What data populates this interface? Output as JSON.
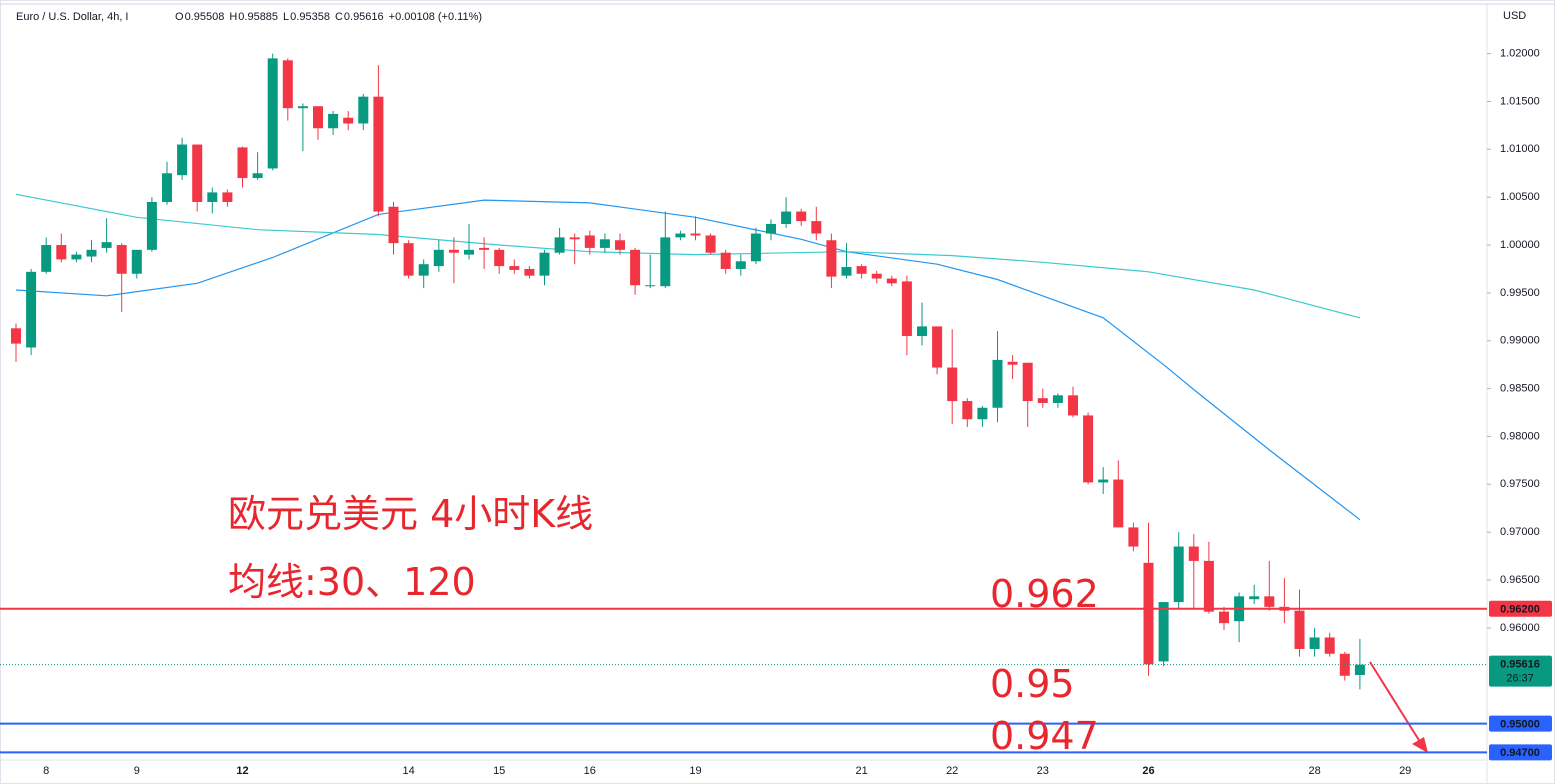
{
  "chart_data": {
    "type": "candlestick",
    "header": {
      "symbol": "Euro / U.S. Dollar, 4h, I",
      "ohlc": [
        {
          "label": "O",
          "value": 0.95508
        },
        {
          "label": "H",
          "value": 0.95885
        },
        {
          "label": "L",
          "value": 0.95358
        },
        {
          "label": "C",
          "value": 0.95616
        }
      ],
      "change": "+0.00108 (+0.11%)"
    },
    "currency": "USD",
    "categories": [
      null,
      null,
      "8",
      null,
      null,
      null,
      null,
      null,
      "9",
      null,
      null,
      null,
      null,
      null,
      null,
      "12",
      null,
      null,
      null,
      null,
      null,
      null,
      null,
      null,
      null,
      null,
      "14",
      null,
      null,
      null,
      null,
      null,
      "15",
      null,
      null,
      null,
      null,
      null,
      "16",
      null,
      null,
      null,
      null,
      null,
      null,
      "19",
      null,
      null,
      null,
      null,
      null,
      null,
      null,
      null,
      null,
      null,
      "21",
      null,
      null,
      null,
      null,
      null,
      "22",
      null,
      null,
      null,
      null,
      null,
      "23",
      null,
      null,
      null,
      null,
      null,
      null,
      "26",
      null,
      null,
      null,
      null,
      null,
      null,
      null,
      null,
      null,
      null,
      "28",
      null,
      null,
      null,
      null,
      null,
      "29"
    ],
    "open": [
      0.9913,
      0.9893,
      0.9972,
      1.0,
      0.9985,
      0.9988,
      0.9997,
      1.0,
      0.997,
      0.9995,
      1.0045,
      1.0073,
      1.0105,
      1.0045,
      1.0055,
      1.0102,
      1.007,
      1.008,
      1.0193,
      1.0143,
      1.0145,
      1.0122,
      1.0133,
      1.0127,
      1.0155,
      1.004,
      1.0002,
      0.9968,
      0.9978,
      0.9995,
      0.999,
      0.9997,
      0.9995,
      0.9978,
      0.9975,
      0.9968,
      0.9992,
      1.0008,
      1.001,
      0.9997,
      1.0005,
      0.9995,
      0.9957,
      0.9957,
      1.0008,
      1.0012,
      1.001,
      0.9992,
      0.9975,
      0.9983,
      1.0012,
      1.0022,
      1.0035,
      1.0025,
      1.0005,
      0.9968,
      0.9978,
      0.997,
      0.9965,
      0.9962,
      0.9905,
      0.9915,
      0.9872,
      0.9837,
      0.9818,
      0.983,
      0.9878,
      0.9877,
      0.984,
      0.9835,
      0.9843,
      0.9822,
      0.9752,
      0.9755,
      0.9705,
      0.9668,
      0.9565,
      0.9627,
      0.9685,
      0.967,
      0.9617,
      0.9607,
      0.963,
      0.9633,
      0.9622,
      0.9618,
      0.9578,
      0.959,
      0.9573,
      0.95508,
      null,
      null,
      null
    ],
    "high": [
      0.9918,
      0.9975,
      1.0008,
      1.0012,
      0.9993,
      1.0005,
      1.0028,
      1.0002,
      0.9995,
      1.005,
      1.0087,
      1.0112,
      1.0105,
      1.006,
      1.0058,
      1.0103,
      1.0097,
      1.02,
      1.0195,
      1.0148,
      1.0145,
      1.014,
      1.014,
      1.0158,
      1.0188,
      1.0045,
      1.0005,
      0.9985,
      1.0005,
      1.0008,
      1.0022,
      1.0008,
      0.9997,
      0.9985,
      0.9978,
      0.9995,
      1.0018,
      1.0012,
      1.0015,
      1.0012,
      1.0012,
      0.9997,
      0.999,
      1.0035,
      1.0015,
      1.003,
      1.0012,
      0.9995,
      0.999,
      1.0018,
      1.0027,
      1.005,
      1.0038,
      1.004,
      1.0012,
      1.0002,
      0.998,
      0.9973,
      0.9968,
      0.9968,
      0.994,
      0.9915,
      0.9912,
      0.984,
      0.9832,
      0.991,
      0.9885,
      0.9877,
      0.985,
      0.9845,
      0.9852,
      0.9825,
      0.9768,
      0.9775,
      0.971,
      0.971,
      0.9627,
      0.97,
      0.9698,
      0.969,
      0.9622,
      0.9637,
      0.9645,
      0.967,
      0.9652,
      0.964,
      0.96,
      0.9595,
      0.9575,
      0.95885,
      null,
      null,
      null
    ],
    "low": [
      0.9878,
      0.9885,
      0.997,
      0.9982,
      0.9982,
      0.9982,
      0.9992,
      0.993,
      0.9965,
      0.9993,
      1.0042,
      1.0068,
      1.0035,
      1.0033,
      1.004,
      1.006,
      1.0068,
      1.0078,
      1.013,
      1.0098,
      1.011,
      1.0115,
      1.012,
      1.012,
      1.003,
      0.999,
      0.9965,
      0.9955,
      0.9972,
      0.996,
      0.9985,
      0.9975,
      0.997,
      0.997,
      0.9965,
      0.9958,
      0.999,
      0.998,
      0.999,
      0.9992,
      0.999,
      0.9948,
      0.9955,
      0.9955,
      1.0005,
      1.0005,
      0.999,
      0.997,
      0.9968,
      0.998,
      1.0005,
      1.0018,
      1.002,
      1.0005,
      0.9955,
      0.9965,
      0.9965,
      0.996,
      0.9957,
      0.9885,
      0.9895,
      0.9865,
      0.9813,
      0.981,
      0.981,
      0.9815,
      0.986,
      0.981,
      0.983,
      0.983,
      0.982,
      0.975,
      0.974,
      0.9705,
      0.968,
      0.955,
      0.956,
      0.962,
      0.962,
      0.9615,
      0.9598,
      0.9585,
      0.9625,
      0.9618,
      0.9605,
      0.957,
      0.957,
      0.957,
      0.9545,
      0.95358,
      null,
      null,
      null
    ],
    "close": [
      0.9897,
      0.9972,
      1.0,
      0.9985,
      0.999,
      0.9995,
      1.0003,
      0.997,
      0.9995,
      1.0045,
      1.0075,
      1.0105,
      1.0045,
      1.0055,
      1.0045,
      1.007,
      1.0075,
      1.0195,
      1.0143,
      1.0145,
      1.0122,
      1.0137,
      1.0127,
      1.0155,
      1.0035,
      1.0002,
      0.9968,
      0.998,
      0.9995,
      0.9992,
      0.9995,
      0.9995,
      0.9978,
      0.9974,
      0.9968,
      0.9992,
      1.0008,
      1.0006,
      0.9997,
      1.0006,
      0.9995,
      0.9958,
      0.9958,
      1.0008,
      1.0012,
      1.001,
      0.9992,
      0.9975,
      0.9983,
      1.0012,
      1.0022,
      1.0035,
      1.0025,
      1.0012,
      0.9967,
      0.9977,
      0.997,
      0.9965,
      0.996,
      0.9905,
      0.9915,
      0.9872,
      0.9837,
      0.9818,
      0.983,
      0.988,
      0.9875,
      0.9837,
      0.9835,
      0.9843,
      0.9822,
      0.9752,
      0.9755,
      0.9705,
      0.9685,
      0.9562,
      0.9627,
      0.9685,
      0.967,
      0.9617,
      0.9605,
      0.9633,
      0.9633,
      0.9622,
      0.9618,
      0.9578,
      0.959,
      0.9573,
      0.955,
      0.95616,
      null,
      null,
      null
    ],
    "up_color": "#089981",
    "down_color": "#f23645",
    "moving_averages": [
      {
        "color": "#2196f3",
        "x": [
          0,
          6,
          12,
          17,
          24,
          31,
          38,
          45,
          52,
          55,
          61,
          65,
          72,
          76,
          78,
          83,
          89
        ],
        "values": [
          0.9953,
          0.9947,
          0.996,
          0.9987,
          1.0032,
          1.0047,
          1.0044,
          1.0029,
          1.0006,
          0.9993,
          0.998,
          0.9964,
          0.9924,
          0.9875,
          0.9849,
          0.9786,
          0.9713
        ]
      },
      {
        "color": "#3bc9d0",
        "x": [
          0,
          8,
          16,
          24,
          32,
          38,
          45,
          55,
          62,
          68,
          75,
          82,
          89
        ],
        "values": [
          1.0053,
          1.0029,
          1.0016,
          1.0011,
          1.0,
          0.9993,
          0.999,
          0.9993,
          0.9989,
          0.9982,
          0.9972,
          0.9953,
          0.9924
        ]
      }
    ],
    "ylim": [
      0.9462,
      1.0256
    ],
    "yticks": [
      {
        "value": 0.96,
        "label": "0.96000"
      },
      {
        "value": 0.965,
        "label": "0.96500"
      },
      {
        "value": 0.97,
        "label": "0.97000"
      },
      {
        "value": 0.975,
        "label": "0.97500"
      },
      {
        "value": 0.98,
        "label": "0.98000"
      },
      {
        "value": 0.985,
        "label": "0.98500"
      },
      {
        "value": 0.99,
        "label": "0.99000"
      },
      {
        "value": 0.995,
        "label": "0.99500"
      },
      {
        "value": 1.0,
        "label": "1.00000"
      },
      {
        "value": 1.005,
        "label": "1.00500"
      },
      {
        "value": 1.01,
        "label": "1.01000"
      },
      {
        "value": 1.015,
        "label": "1.01500"
      },
      {
        "value": 1.02,
        "label": "1.02000"
      }
    ],
    "price_lines": [
      {
        "value": 0.962,
        "label": "0.96200",
        "color": "#f23645"
      },
      {
        "value": 0.95,
        "label": "0.95000",
        "color": "#2962ff"
      },
      {
        "value": 0.947,
        "label": "0.94700",
        "color": "#2962ff"
      }
    ],
    "last_price": {
      "value": 0.95616,
      "label": "0.95616",
      "countdown": "26:37",
      "color": "#089981"
    },
    "annotations": [
      "欧元兑美元 4小时K线",
      "均线:30、120",
      "0.962",
      "0.95",
      "0.947"
    ]
  }
}
